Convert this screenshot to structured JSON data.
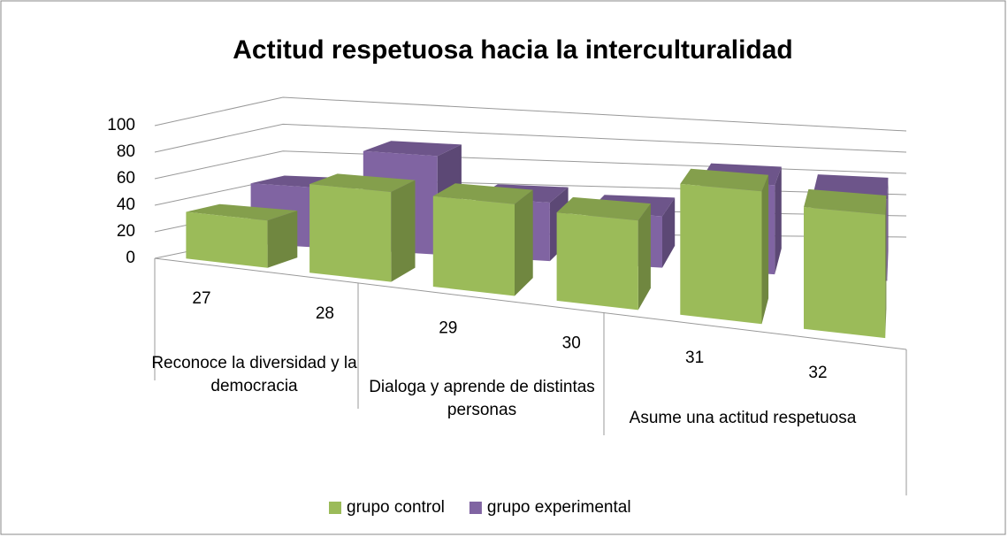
{
  "chart_data": {
    "type": "bar3d",
    "title": "Actitud respetuosa hacia la interculturalidad",
    "categories": [
      "27",
      "28",
      "29",
      "30",
      "31",
      "32"
    ],
    "category_groups": [
      "Reconoce la diversidad y la democracia",
      "Dialoga y aprende de distintas personas",
      "Asume una actitud respetuosa"
    ],
    "series": [
      {
        "name": "grupo control",
        "color": "#9bbb59",
        "values": [
          35,
          65,
          65,
          62,
          90,
          82
        ]
      },
      {
        "name": "grupo experimental",
        "color": "#8064a2",
        "values": [
          45,
          75,
          45,
          40,
          70,
          65
        ]
      }
    ],
    "ylim": [
      0,
      100
    ],
    "yticks": [
      0,
      20,
      40,
      60,
      80,
      100
    ],
    "grid": true,
    "legend": "bottom"
  }
}
